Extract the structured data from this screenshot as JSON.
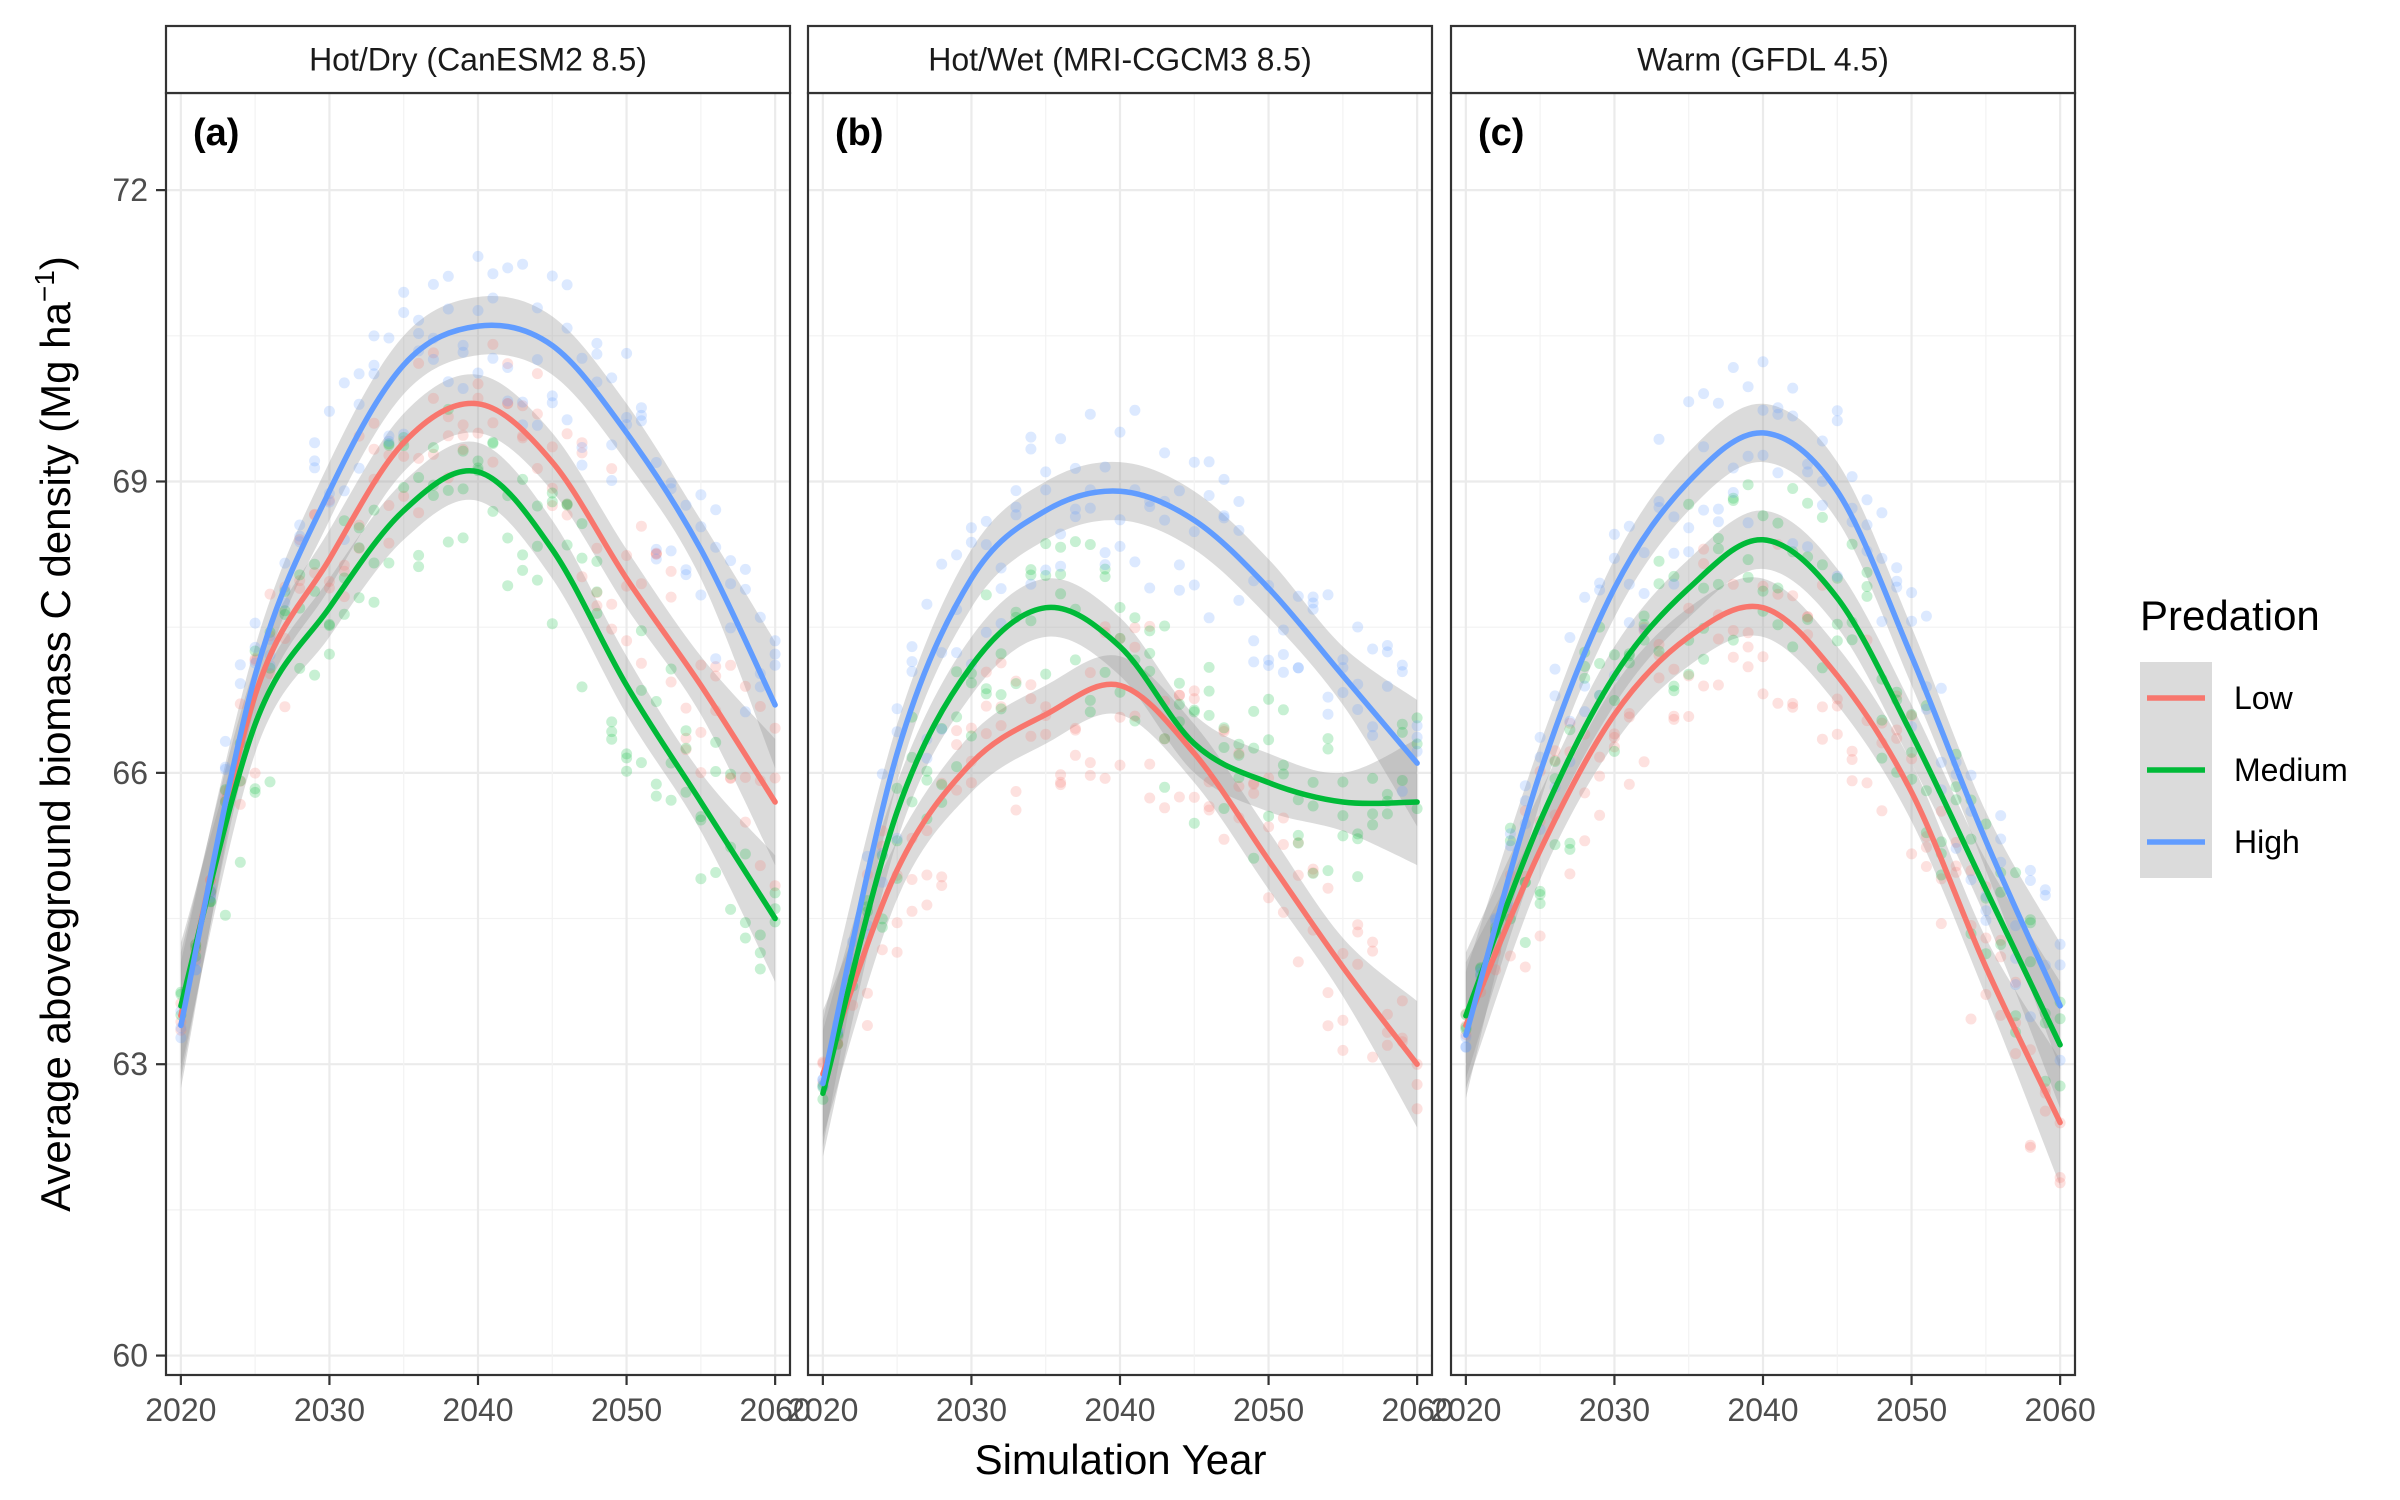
{
  "chart_data": {
    "type": "line",
    "xlabel": "Simulation Year",
    "ylabel": "Average aboveground biomass C density (Mg ha",
    "ylabel_sup": "−1",
    "ylabel_tail": ")",
    "x_ticks": [
      2020,
      2030,
      2040,
      2050,
      2060
    ],
    "y_ticks": [
      60,
      63,
      66,
      69,
      72
    ],
    "xlim": [
      2019,
      2061
    ],
    "ylim": [
      59.8,
      73.0
    ],
    "grid": true,
    "legend_title": "Predation",
    "legend_position": "right",
    "colors": {
      "Low": "#F8766D",
      "Medium": "#00BA38",
      "High": "#619CFF",
      "band": "#999999"
    },
    "panels": [
      {
        "strip": "Hot/Dry (CanESM2 8.5)",
        "letter": "(a)",
        "series": [
          {
            "name": "Low",
            "x": [
              2020,
              2025,
              2030,
              2035,
              2040,
              2045,
              2050,
              2055,
              2060
            ],
            "y": [
              63.5,
              66.8,
              68.2,
              69.4,
              69.8,
              69.2,
              68.0,
              66.9,
              65.7
            ]
          },
          {
            "name": "Medium",
            "x": [
              2020,
              2025,
              2030,
              2035,
              2040,
              2045,
              2050,
              2055,
              2060
            ],
            "y": [
              63.6,
              66.5,
              67.7,
              68.7,
              69.1,
              68.3,
              66.9,
              65.7,
              64.5
            ]
          },
          {
            "name": "High",
            "x": [
              2020,
              2025,
              2030,
              2035,
              2040,
              2045,
              2050,
              2055,
              2060
            ],
            "y": [
              63.4,
              67.0,
              68.9,
              70.2,
              70.6,
              70.4,
              69.5,
              68.3,
              66.7
            ]
          }
        ]
      },
      {
        "strip": "Hot/Wet (MRI-CGCM3 8.5)",
        "letter": "(b)",
        "series": [
          {
            "name": "Low",
            "x": [
              2020,
              2025,
              2030,
              2035,
              2040,
              2045,
              2050,
              2055,
              2060
            ],
            "y": [
              62.9,
              65.0,
              66.1,
              66.6,
              66.9,
              66.2,
              65.1,
              64.0,
              63.0
            ]
          },
          {
            "name": "Medium",
            "x": [
              2020,
              2025,
              2030,
              2035,
              2040,
              2045,
              2050,
              2055,
              2060
            ],
            "y": [
              62.7,
              65.6,
              67.1,
              67.7,
              67.3,
              66.3,
              65.9,
              65.7,
              65.7
            ]
          },
          {
            "name": "High",
            "x": [
              2020,
              2025,
              2030,
              2035,
              2040,
              2045,
              2050,
              2055,
              2060
            ],
            "y": [
              62.8,
              66.2,
              68.0,
              68.7,
              68.9,
              68.6,
              67.9,
              67.0,
              66.1
            ]
          }
        ]
      },
      {
        "strip": "Warm (GFDL 4.5)",
        "letter": "(c)",
        "series": [
          {
            "name": "Low",
            "x": [
              2020,
              2025,
              2030,
              2035,
              2040,
              2045,
              2050,
              2055,
              2060
            ],
            "y": [
              63.4,
              65.2,
              66.6,
              67.4,
              67.7,
              67.0,
              65.8,
              64.0,
              62.4
            ]
          },
          {
            "name": "Medium",
            "x": [
              2020,
              2025,
              2030,
              2035,
              2040,
              2045,
              2050,
              2055,
              2060
            ],
            "y": [
              63.5,
              65.5,
              67.0,
              67.9,
              68.4,
              67.8,
              66.4,
              64.8,
              63.2
            ]
          },
          {
            "name": "High",
            "x": [
              2020,
              2025,
              2030,
              2035,
              2040,
              2045,
              2050,
              2055,
              2060
            ],
            "y": [
              63.3,
              66.0,
              67.9,
              69.0,
              69.5,
              68.9,
              67.2,
              65.3,
              63.6
            ]
          }
        ]
      }
    ]
  }
}
